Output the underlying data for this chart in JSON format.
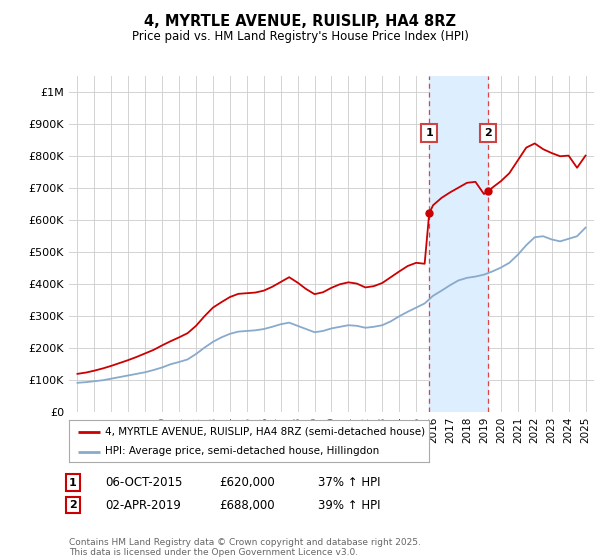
{
  "title": "4, MYRTLE AVENUE, RUISLIP, HA4 8RZ",
  "subtitle": "Price paid vs. HM Land Registry's House Price Index (HPI)",
  "ylabel_ticks": [
    "£0",
    "£100K",
    "£200K",
    "£300K",
    "£400K",
    "£500K",
    "£600K",
    "£700K",
    "£800K",
    "£900K",
    "£1M"
  ],
  "ytick_values": [
    0,
    100000,
    200000,
    300000,
    400000,
    500000,
    600000,
    700000,
    800000,
    900000,
    1000000
  ],
  "ylim": [
    0,
    1050000
  ],
  "xlim_start": 1994.5,
  "xlim_end": 2025.5,
  "marker1_x": 2015.77,
  "marker1_y": 620000,
  "marker2_x": 2019.25,
  "marker2_y": 688000,
  "shade_x1": 2015.77,
  "shade_x2": 2019.25,
  "legend_line1": "4, MYRTLE AVENUE, RUISLIP, HA4 8RZ (semi-detached house)",
  "legend_line2": "HPI: Average price, semi-detached house, Hillingdon",
  "marker1_date": "06-OCT-2015",
  "marker1_price": "£620,000",
  "marker1_hpi": "37% ↑ HPI",
  "marker2_date": "02-APR-2019",
  "marker2_price": "£688,000",
  "marker2_hpi": "39% ↑ HPI",
  "footer": "Contains HM Land Registry data © Crown copyright and database right 2025.\nThis data is licensed under the Open Government Licence v3.0.",
  "red_color": "#cc0000",
  "blue_color": "#88aacc",
  "shade_color": "#ddeeff",
  "background_color": "#ffffff",
  "grid_color": "#cccccc"
}
